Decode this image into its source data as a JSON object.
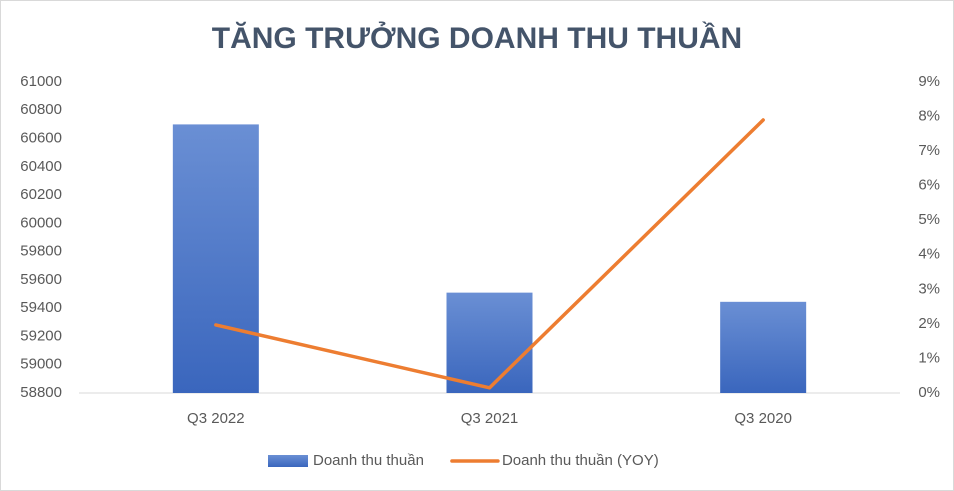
{
  "chart_data": {
    "type": "bar",
    "title": "TĂNG TRƯỞNG DOANH THU THUẦN",
    "categories": [
      "Q3 2022",
      "Q3 2021",
      "Q3 2020"
    ],
    "series": [
      {
        "name": "Doanh thu thuần",
        "type": "bar",
        "color": "#4472c4",
        "values": [
          60700,
          59510,
          59445
        ]
      },
      {
        "name": "Doanh thu thuần (YOY)",
        "type": "line",
        "axis": "y2",
        "color": "#ed7d31",
        "values": [
          1.97,
          0.15,
          7.9
        ]
      }
    ],
    "ylim": [
      58800,
      61000
    ],
    "yticks": [
      58800,
      59000,
      59200,
      59400,
      59600,
      59800,
      60000,
      60200,
      60400,
      60600,
      60800,
      61000
    ],
    "y2lim": [
      0,
      9
    ],
    "y2ticks": [
      {
        "value": 0,
        "label": "0%"
      },
      {
        "value": 1,
        "label": "1%"
      },
      {
        "value": 2,
        "label": "2%"
      },
      {
        "value": 3,
        "label": "3%"
      },
      {
        "value": 4,
        "label": "4%"
      },
      {
        "value": 5,
        "label": "5%"
      },
      {
        "value": 6,
        "label": "6%"
      },
      {
        "value": 7,
        "label": "7%"
      },
      {
        "value": 8,
        "label": "8%"
      },
      {
        "value": 9,
        "label": "9%"
      }
    ],
    "grid": false,
    "legend": "bottom"
  }
}
